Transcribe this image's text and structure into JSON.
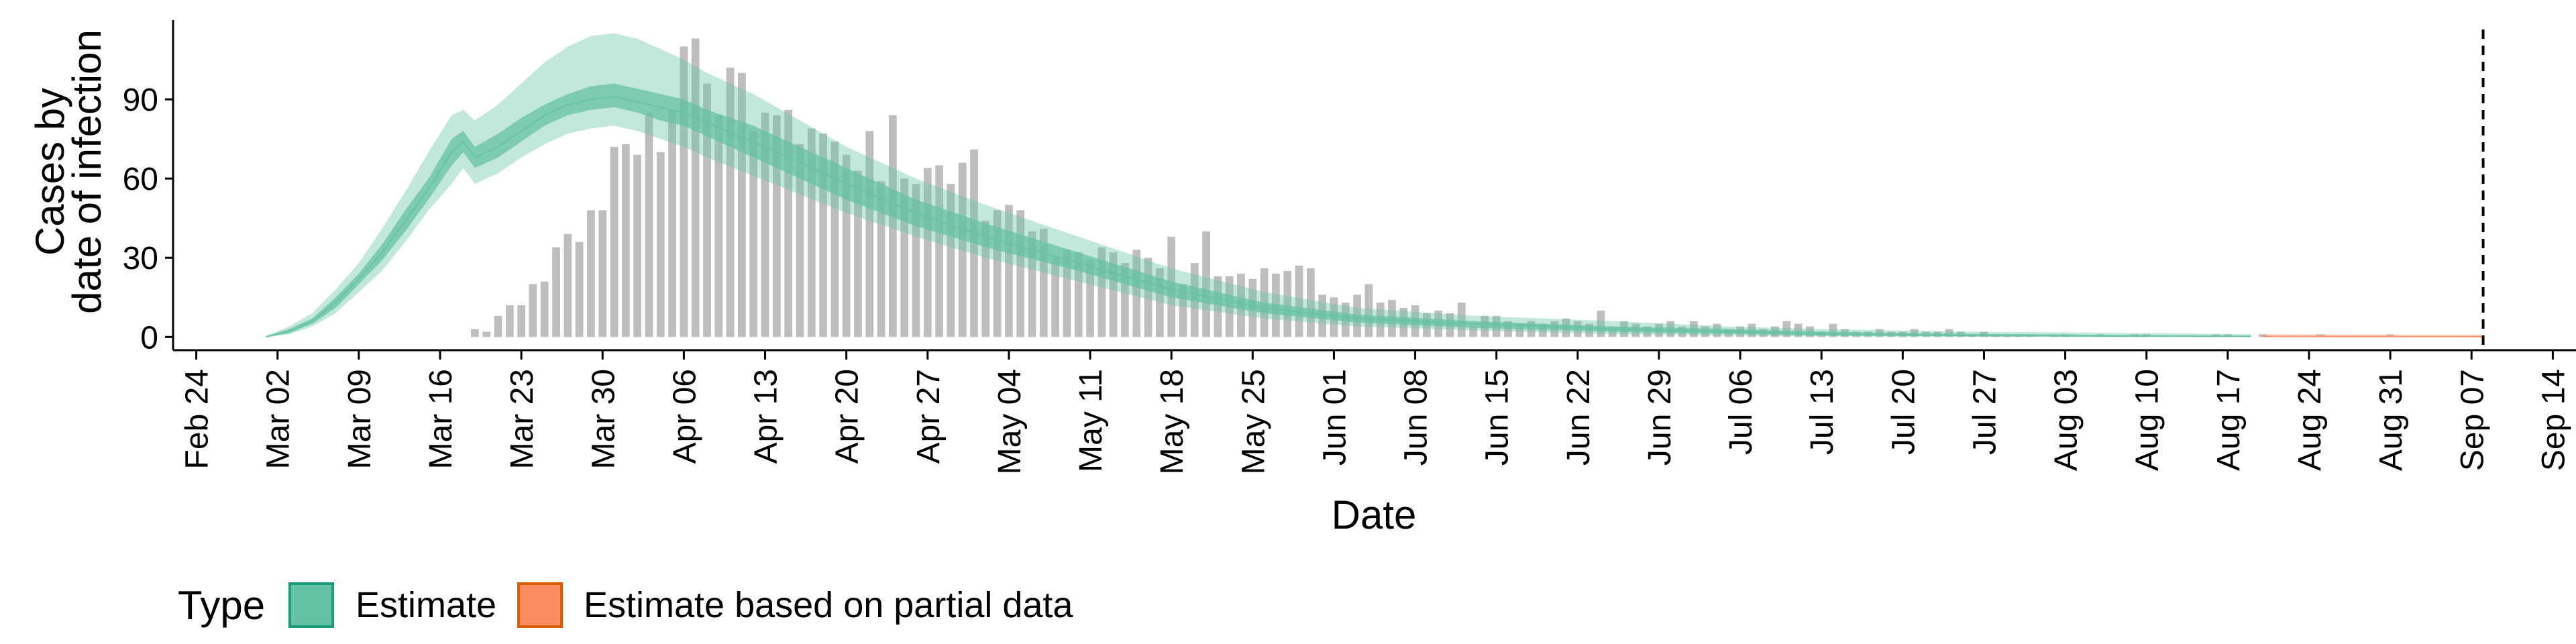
{
  "chart_data": {
    "type": "bar",
    "xlabel": "Date",
    "ylabel_lines": [
      "Cases by",
      "date of infection"
    ],
    "x_tick_labels": [
      "Feb 24",
      "Mar 02",
      "Mar 09",
      "Mar 16",
      "Mar 23",
      "Mar 30",
      "Apr 06",
      "Apr 13",
      "Apr 20",
      "Apr 27",
      "May 04",
      "May 11",
      "May 18",
      "May 25",
      "Jun 01",
      "Jun 08",
      "Jun 15",
      "Jun 22",
      "Jun 29",
      "Jul 06",
      "Jul 13",
      "Jul 20",
      "Jul 27",
      "Aug 03",
      "Aug 10",
      "Aug 17",
      "Aug 24",
      "Aug 31",
      "Sep 07",
      "Sep 14"
    ],
    "x_range": [
      "2020-02-22",
      "2020-09-16"
    ],
    "y_ticks": [
      0,
      30,
      60,
      90
    ],
    "ylim": [
      -5,
      120
    ],
    "vline": {
      "date": "2020-09-08",
      "style": "dashed"
    },
    "observed_cases": {
      "start_date": "2020-03-19",
      "color": "#bebebe",
      "values": [
        3,
        2,
        8,
        12,
        12,
        20,
        21,
        34,
        39,
        36,
        48,
        48,
        72,
        73,
        69,
        85,
        70,
        86,
        110,
        113,
        96,
        84,
        102,
        100,
        78,
        85,
        84,
        86,
        73,
        79,
        77,
        74,
        69,
        63,
        78,
        59,
        84,
        60,
        58,
        64,
        65,
        58,
        66,
        71,
        44,
        48,
        50,
        48,
        40,
        41,
        30,
        33,
        32,
        29,
        34,
        32,
        28,
        33,
        30,
        26,
        38,
        20,
        28,
        40,
        23,
        23,
        24,
        22,
        26,
        24,
        25,
        27,
        26,
        16,
        15,
        13,
        16,
        20,
        13,
        14,
        11,
        12,
        9,
        10,
        9,
        13,
        4,
        8,
        8,
        6,
        5,
        6,
        5,
        6,
        7,
        6,
        5,
        10,
        4,
        6,
        5,
        4,
        5,
        6,
        4,
        6,
        4,
        5,
        3,
        4,
        5,
        3,
        4,
        6,
        5,
        4,
        2,
        5,
        3,
        2,
        2,
        3,
        2,
        2,
        3,
        2,
        2,
        3,
        2,
        1,
        2,
        1,
        1,
        1,
        1,
        0,
        1,
        1,
        0,
        0,
        1,
        0,
        0,
        1,
        1,
        0,
        0,
        0,
        0,
        0,
        1,
        1,
        0,
        0,
        1,
        0,
        0,
        0,
        0,
        1,
        0,
        0,
        0,
        0,
        0,
        1
      ]
    },
    "series": [
      {
        "name": "Estimate",
        "color": "#66c2a5",
        "dates": [
          "2020-03-01",
          "2020-03-03",
          "2020-03-05",
          "2020-03-07",
          "2020-03-09",
          "2020-03-11",
          "2020-03-13",
          "2020-03-15",
          "2020-03-17",
          "2020-03-18",
          "2020-03-19",
          "2020-03-21",
          "2020-03-23",
          "2020-03-25",
          "2020-03-27",
          "2020-03-29",
          "2020-03-31",
          "2020-04-02",
          "2020-04-04",
          "2020-04-06",
          "2020-04-08",
          "2020-04-12",
          "2020-04-16",
          "2020-04-20",
          "2020-04-26",
          "2020-05-02",
          "2020-05-10",
          "2020-05-18",
          "2020-05-26",
          "2020-06-03",
          "2020-06-13",
          "2020-06-25",
          "2020-07-05",
          "2020-07-13",
          "2020-07-25",
          "2020-08-10",
          "2020-08-19"
        ],
        "median": [
          0,
          2,
          6,
          13,
          22,
          32,
          44,
          56,
          70,
          74,
          68,
          72,
          78,
          84,
          88,
          90,
          91,
          89,
          87,
          85,
          81,
          74,
          66,
          58,
          47,
          38,
          28,
          18,
          11,
          7,
          5,
          3,
          2,
          1,
          0.6,
          0.3,
          0.2
        ],
        "inner_low": [
          0,
          1.5,
          5,
          11,
          20,
          29,
          40,
          52,
          65,
          70,
          64,
          68,
          74,
          80,
          84,
          86,
          87,
          85,
          82,
          80,
          76,
          68,
          60,
          52,
          42,
          34,
          25,
          15,
          9,
          5.5,
          3.5,
          2,
          1.2,
          0.6,
          0.3,
          0.1,
          0.05
        ],
        "inner_high": [
          0.2,
          3,
          7,
          15,
          24,
          35,
          48,
          60,
          75,
          78,
          72,
          77,
          83,
          88,
          92,
          95,
          96,
          94,
          92,
          90,
          86,
          80,
          72,
          64,
          52,
          43,
          32,
          21,
          13,
          8.5,
          6,
          4,
          3,
          2,
          1.2,
          0.7,
          0.5
        ],
        "outer_low": [
          0,
          1,
          4,
          9,
          17,
          25,
          36,
          48,
          58,
          64,
          58,
          62,
          68,
          73,
          77,
          79,
          80,
          78,
          75,
          72,
          68,
          61,
          54,
          47,
          38,
          30,
          21,
          12,
          7,
          4,
          2.5,
          1,
          0.5,
          0.2,
          0.1,
          0,
          0
        ],
        "outer_high": [
          0.5,
          4,
          9,
          18,
          28,
          41,
          55,
          70,
          84,
          86,
          82,
          88,
          96,
          104,
          110,
          114,
          115,
          113,
          109,
          105,
          100,
          92,
          82,
          72,
          60,
          50,
          38,
          26,
          17,
          11,
          8,
          6,
          4,
          3,
          2,
          1.5,
          1
        ]
      },
      {
        "name": "Estimate based on partial data",
        "color": "#fc8d62",
        "dates": [
          "2020-08-20",
          "2020-09-08"
        ],
        "median": [
          0.2,
          0.1
        ],
        "inner_low": [
          0.05,
          0
        ],
        "inner_high": [
          0.5,
          0.4
        ],
        "outer_low": [
          0,
          0
        ],
        "outer_high": [
          1,
          0.8
        ]
      }
    ],
    "legend": {
      "title": "Type",
      "placement": "bottom-left",
      "entries": [
        {
          "label": "Estimate",
          "fill": "#66c2a5",
          "stroke": "#1b9e77"
        },
        {
          "label": "Estimate based on partial data",
          "fill": "#fc8d62",
          "stroke": "#d95f02"
        }
      ]
    }
  }
}
